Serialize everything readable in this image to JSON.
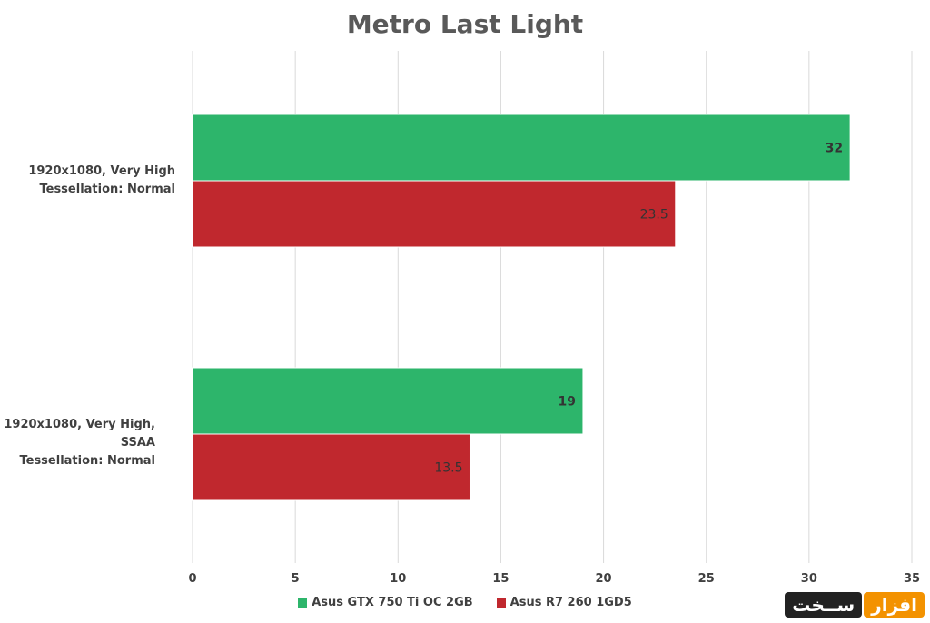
{
  "chart_data": {
    "type": "bar",
    "orientation": "horizontal",
    "title": "Metro Last Light",
    "categories": [
      "1920x1080, Very High\nTessellation: Normal",
      "1920x1080, Very High, SSAA\nTessellation: Normal"
    ],
    "series": [
      {
        "name": "Asus GTX 750 Ti OC 2GB",
        "color": "#2db56b",
        "values": [
          32,
          19
        ]
      },
      {
        "name": "Asus R7 260 1GD5",
        "color": "#c0282e",
        "values": [
          23.5,
          13.5
        ]
      }
    ],
    "data_labels": [
      [
        "32",
        "19"
      ],
      [
        "23.5",
        "13.5"
      ]
    ],
    "xlim": [
      0,
      35
    ],
    "xticks": [
      0,
      5,
      10,
      15,
      20,
      25,
      30,
      35
    ],
    "grid": "vertical",
    "legend": "bottom"
  },
  "watermark": {
    "left": "ســخت",
    "right": "افزار"
  }
}
